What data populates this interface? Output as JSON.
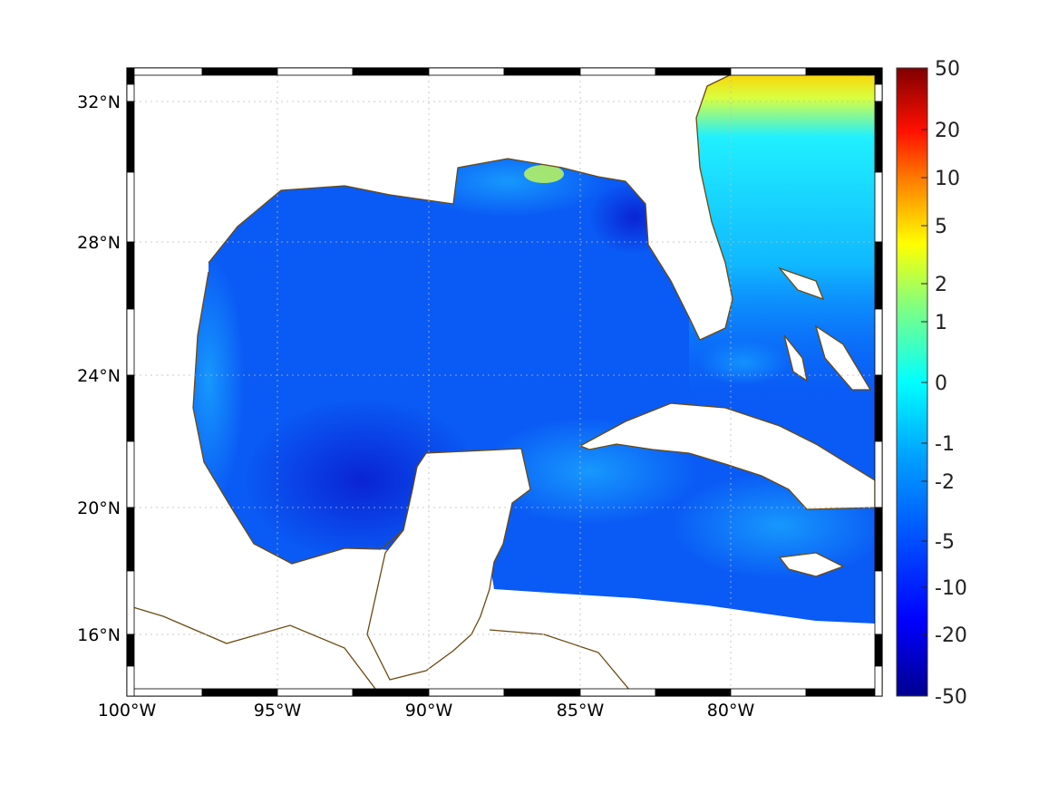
{
  "map": {
    "x_tick_labels": [
      "100°W",
      "95°W",
      "90°W",
      "85°W",
      "80°W"
    ],
    "y_tick_labels": [
      "32°N",
      "28°N",
      "24°N",
      "20°N",
      "16°N"
    ],
    "coastline_color": "#6b4a10",
    "grid": true
  },
  "colorbar": {
    "labels": [
      "50",
      "20",
      "10",
      "5",
      "2",
      "1",
      "0",
      "-1",
      "-2",
      "-5",
      "-10",
      "-20",
      "-50"
    ],
    "colormap": [
      "#800000",
      "#ff0000",
      "#ff8000",
      "#ffff00",
      "#80ff80",
      "#00ffff",
      "#0080ff",
      "#0000ff",
      "#000080"
    ]
  }
}
